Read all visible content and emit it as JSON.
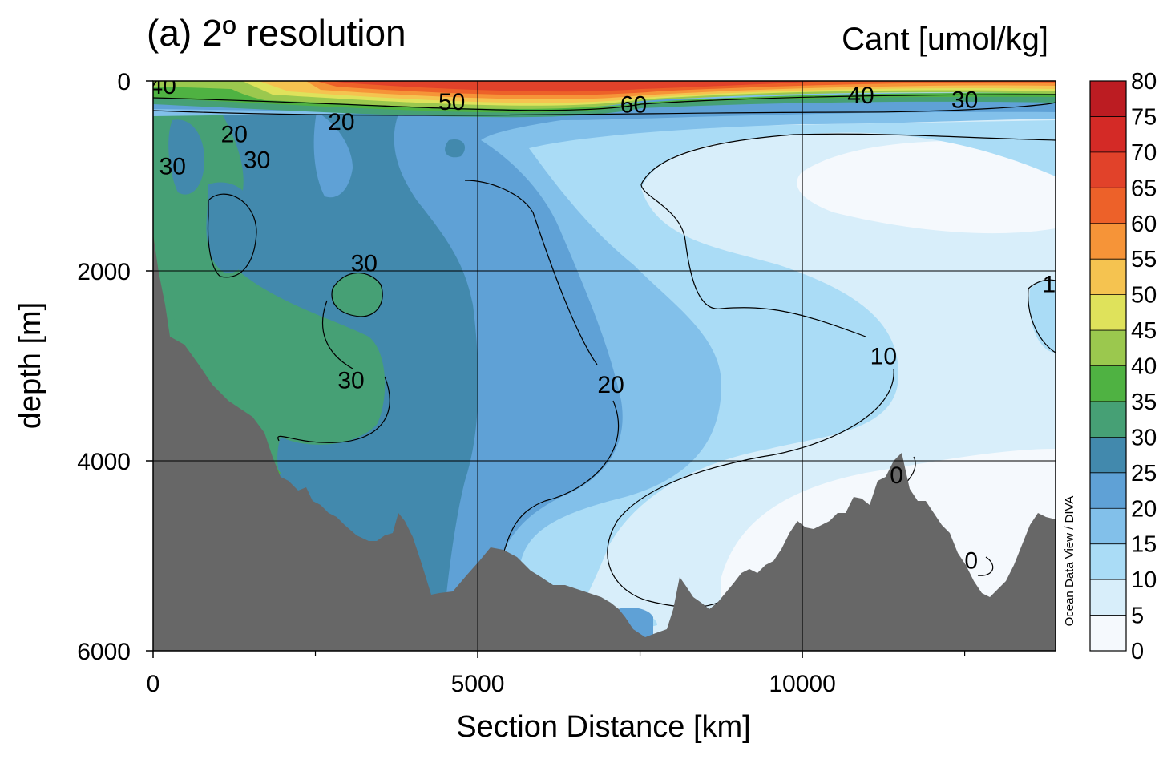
{
  "chart_data": {
    "type": "heatmap",
    "title": "(a) 2º resolution",
    "variable_label": "Cant [umol/kg]",
    "xlabel": "Section Distance [km]",
    "ylabel": "depth [m]",
    "xlim": [
      0,
      13900
    ],
    "ylim": [
      6000,
      0
    ],
    "y_axis_inverted": true,
    "grid": true,
    "x_ticks": [
      0,
      5000,
      10000
    ],
    "x_tick_labels": [
      "0",
      "5000",
      "10000"
    ],
    "x_minor_ticks": [
      2500,
      7500,
      12500
    ],
    "y_ticks": [
      0,
      2000,
      4000,
      6000
    ],
    "y_tick_labels": [
      "0",
      "2000",
      "4000",
      "6000"
    ],
    "colorbar": {
      "levels": [
        0,
        5,
        10,
        15,
        20,
        25,
        30,
        35,
        40,
        45,
        50,
        55,
        60,
        65,
        70,
        75,
        80
      ],
      "labels": [
        "0",
        "5",
        "10",
        "15",
        "20",
        "25",
        "30",
        "35",
        "40",
        "45",
        "50",
        "55",
        "60",
        "65",
        "70",
        "75",
        "80"
      ],
      "colors": [
        "#f5f9fd",
        "#d8eefa",
        "#aadcf6",
        "#82c0ea",
        "#5fa1d6",
        "#4289ad",
        "#46a075",
        "#4fb242",
        "#9bc84e",
        "#dfe25b",
        "#f5c350",
        "#f69438",
        "#ed6129",
        "#e1422a",
        "#d42a26",
        "#bc1c22"
      ]
    },
    "bathymetry_color": "#676767",
    "contour_labels": [
      {
        "text": "40",
        "x": 150,
        "y": 50
      },
      {
        "text": "50",
        "x": 4600,
        "y": 220
      },
      {
        "text": "60",
        "x": 7400,
        "y": 250
      },
      {
        "text": "40",
        "x": 10900,
        "y": 150
      },
      {
        "text": "30",
        "x": 12500,
        "y": 200
      },
      {
        "text": "20",
        "x": 2900,
        "y": 430
      },
      {
        "text": "20",
        "x": 1250,
        "y": 560
      },
      {
        "text": "30",
        "x": 1600,
        "y": 830
      },
      {
        "text": "30",
        "x": 300,
        "y": 900
      },
      {
        "text": "30",
        "x": 3250,
        "y": 1920
      },
      {
        "text": "30",
        "x": 3050,
        "y": 3150
      },
      {
        "text": "20",
        "x": 7050,
        "y": 3200
      },
      {
        "text": "10",
        "x": 11250,
        "y": 2900
      },
      {
        "text": "1",
        "x": 13800,
        "y": 2140
      },
      {
        "text": "0",
        "x": 11450,
        "y": 4150
      },
      {
        "text": "0",
        "x": 12600,
        "y": 5050
      }
    ],
    "credit": "Ocean Data View / DIVA"
  }
}
